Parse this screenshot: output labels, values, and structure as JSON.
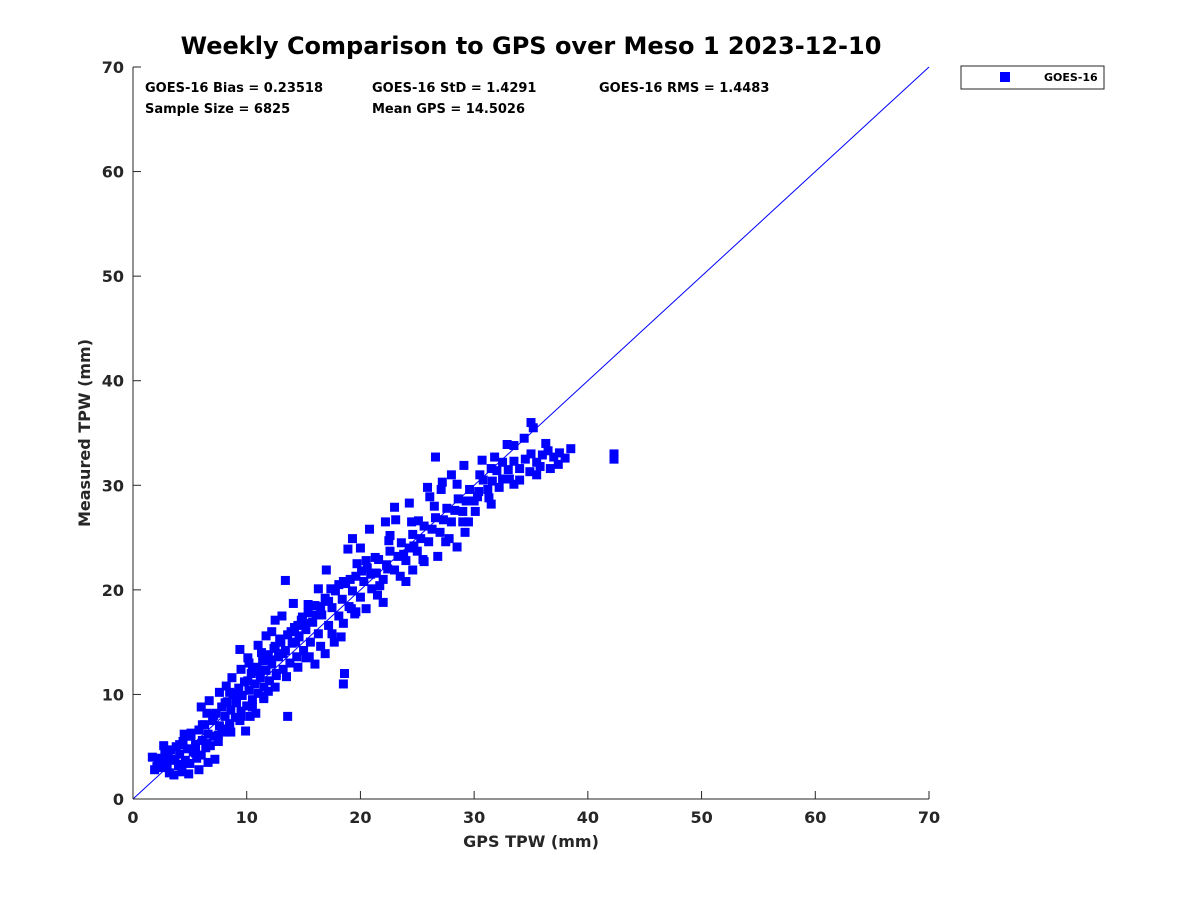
{
  "chart_data": {
    "type": "scatter",
    "title": "Weekly Comparison to GPS over Meso 1 2023-12-10",
    "xlabel": "GPS TPW (mm)",
    "ylabel": "Measured TPW (mm)",
    "xlim": [
      0,
      70
    ],
    "ylim": [
      0,
      70
    ],
    "xticks": [
      "0",
      "10",
      "20",
      "30",
      "40",
      "50",
      "60",
      "70"
    ],
    "yticks": [
      "0",
      "10",
      "20",
      "30",
      "40",
      "50",
      "60",
      "70"
    ],
    "grid": false,
    "legend_position": "outside-top-right",
    "marker": "square",
    "color": "#0000ff",
    "stats": {
      "bias": "GOES-16 Bias = 0.23518",
      "std": "GOES-16 StD = 1.4291",
      "rms": "GOES-16 RMS = 1.4483",
      "sample_size": "Sample Size = 6825",
      "mean_gps": "Mean GPS = 14.5026"
    },
    "reference_line": {
      "x": [
        0,
        70
      ],
      "y": [
        0,
        70
      ]
    },
    "series": [
      {
        "name": "GOES-16",
        "points": [
          [
            1.7,
            4.0
          ],
          [
            1.9,
            2.8
          ],
          [
            2.2,
            3.5
          ],
          [
            2.4,
            3.9
          ],
          [
            2.6,
            3.0
          ],
          [
            2.8,
            4.4
          ],
          [
            3.0,
            3.3
          ],
          [
            3.2,
            2.5
          ],
          [
            3.3,
            4.7
          ],
          [
            3.5,
            3.8
          ],
          [
            3.6,
            2.3
          ],
          [
            3.8,
            5.0
          ],
          [
            4.0,
            3.2
          ],
          [
            4.1,
            4.3
          ],
          [
            4.3,
            2.6
          ],
          [
            4.4,
            5.5
          ],
          [
            4.6,
            3.7
          ],
          [
            4.8,
            4.8
          ],
          [
            5.0,
            3.4
          ],
          [
            5.1,
            6.0
          ],
          [
            5.3,
            4.5
          ],
          [
            5.5,
            5.2
          ],
          [
            5.6,
            3.9
          ],
          [
            5.8,
            6.6
          ],
          [
            6.0,
            4.2
          ],
          [
            6.1,
            5.6
          ],
          [
            6.3,
            7.1
          ],
          [
            6.4,
            4.9
          ],
          [
            6.6,
            6.2
          ],
          [
            6.8,
            5.1
          ],
          [
            7.0,
            7.5
          ],
          [
            7.1,
            6.0
          ],
          [
            7.3,
            8.2
          ],
          [
            7.5,
            5.5
          ],
          [
            7.6,
            7.0
          ],
          [
            7.8,
            8.8
          ],
          [
            8.0,
            6.4
          ],
          [
            8.1,
            7.9
          ],
          [
            8.3,
            9.3
          ],
          [
            8.5,
            7.2
          ],
          [
            8.6,
            8.5
          ],
          [
            8.8,
            10.0
          ],
          [
            9.0,
            7.8
          ],
          [
            9.1,
            9.2
          ],
          [
            9.3,
            10.6
          ],
          [
            9.5,
            8.4
          ],
          [
            9.6,
            9.9
          ],
          [
            9.8,
            11.2
          ],
          [
            10.0,
            8.9
          ],
          [
            10.2,
            10.4
          ],
          [
            10.4,
            12.0
          ],
          [
            10.5,
            9.5
          ],
          [
            10.7,
            11.0
          ],
          [
            10.9,
            12.6
          ],
          [
            11.0,
            10.1
          ],
          [
            11.2,
            11.6
          ],
          [
            11.4,
            13.2
          ],
          [
            11.5,
            10.7
          ],
          [
            11.7,
            12.3
          ],
          [
            11.9,
            13.8
          ],
          [
            12.0,
            11.3
          ],
          [
            12.2,
            12.9
          ],
          [
            12.4,
            14.4
          ],
          [
            12.6,
            11.8
          ],
          [
            12.8,
            13.6
          ],
          [
            13.0,
            15.0
          ],
          [
            13.2,
            12.4
          ],
          [
            13.4,
            14.2
          ],
          [
            13.6,
            15.7
          ],
          [
            13.8,
            13.0
          ],
          [
            14.0,
            14.9
          ],
          [
            14.2,
            16.4
          ],
          [
            14.4,
            13.6
          ],
          [
            14.6,
            15.5
          ],
          [
            14.8,
            17.1
          ],
          [
            15.0,
            14.2
          ],
          [
            15.2,
            16.2
          ],
          [
            15.4,
            17.8
          ],
          [
            15.6,
            15.0
          ],
          [
            15.8,
            16.9
          ],
          [
            16.0,
            18.5
          ],
          [
            16.3,
            15.8
          ],
          [
            16.6,
            17.6
          ],
          [
            16.9,
            19.2
          ],
          [
            17.2,
            16.6
          ],
          [
            17.5,
            18.3
          ],
          [
            17.8,
            19.9
          ],
          [
            18.1,
            17.5
          ],
          [
            18.4,
            19.1
          ],
          [
            18.7,
            20.6
          ],
          [
            19.0,
            18.4
          ],
          [
            19.3,
            19.9
          ],
          [
            19.6,
            21.3
          ],
          [
            20.0,
            19.3
          ],
          [
            20.3,
            20.8
          ],
          [
            20.6,
            22.1
          ],
          [
            21.0,
            20.1
          ],
          [
            21.3,
            21.6
          ],
          [
            21.6,
            22.9
          ],
          [
            22.0,
            21.0
          ],
          [
            22.3,
            22.4
          ],
          [
            22.6,
            23.7
          ],
          [
            23.0,
            21.9
          ],
          [
            23.3,
            23.2
          ],
          [
            23.6,
            24.5
          ],
          [
            24.0,
            22.8
          ],
          [
            24.3,
            24.0
          ],
          [
            24.6,
            25.3
          ],
          [
            25.0,
            23.7
          ],
          [
            25.3,
            24.9
          ],
          [
            25.6,
            26.1
          ],
          [
            26.0,
            24.6
          ],
          [
            26.3,
            25.8
          ],
          [
            26.6,
            26.9
          ],
          [
            27.0,
            25.5
          ],
          [
            27.3,
            26.7
          ],
          [
            27.6,
            27.8
          ],
          [
            28.0,
            26.5
          ],
          [
            28.3,
            27.6
          ],
          [
            28.6,
            28.7
          ],
          [
            29.0,
            27.5
          ],
          [
            29.3,
            28.5
          ],
          [
            29.6,
            29.6
          ],
          [
            30.0,
            28.5
          ],
          [
            30.4,
            29.4
          ],
          [
            30.8,
            30.5
          ],
          [
            31.2,
            29.6
          ],
          [
            31.6,
            30.4
          ],
          [
            32.0,
            31.4
          ],
          [
            32.5,
            30.6
          ],
          [
            33.0,
            31.5
          ],
          [
            33.5,
            32.3
          ],
          [
            34.0,
            31.6
          ],
          [
            34.5,
            32.5
          ],
          [
            35.0,
            33.0
          ],
          [
            35.5,
            32.2
          ],
          [
            36.0,
            32.9
          ],
          [
            36.5,
            33.3
          ],
          [
            37.0,
            32.7
          ],
          [
            37.5,
            33.1
          ],
          [
            38.0,
            32.6
          ],
          [
            38.5,
            33.5
          ],
          [
            42.3,
            33.0
          ],
          [
            42.3,
            32.5
          ],
          [
            35.0,
            36.0
          ],
          [
            34.4,
            34.5
          ],
          [
            35.2,
            35.5
          ],
          [
            33.5,
            33.8
          ],
          [
            26.6,
            32.7
          ],
          [
            21.7,
            20.4
          ],
          [
            20.9,
            21.5
          ],
          [
            18.5,
            11.0
          ],
          [
            18.6,
            12.0
          ],
          [
            14.6,
            15.6
          ],
          [
            13.4,
            20.9
          ],
          [
            17.0,
            21.9
          ],
          [
            19.2,
            18.2
          ],
          [
            20.5,
            18.2
          ],
          [
            12.5,
            17.1
          ],
          [
            13.6,
            7.9
          ],
          [
            11.3,
            14.0
          ],
          [
            10.2,
            13.0
          ],
          [
            9.4,
            14.3
          ],
          [
            20.8,
            25.8
          ],
          [
            19.3,
            24.9
          ],
          [
            23.0,
            27.9
          ],
          [
            22.6,
            25.2
          ],
          [
            21.3,
            23.1
          ],
          [
            24.6,
            21.9
          ],
          [
            28.5,
            24.1
          ],
          [
            29.2,
            25.5
          ],
          [
            30.3,
            28.9
          ],
          [
            31.5,
            31.6
          ],
          [
            29.1,
            31.9
          ],
          [
            28.0,
            31.0
          ],
          [
            27.1,
            29.6
          ],
          [
            26.1,
            28.9
          ],
          [
            25.1,
            26.6
          ],
          [
            24.7,
            24.2
          ],
          [
            23.8,
            23.4
          ],
          [
            22.4,
            22.0
          ],
          [
            21.4,
            21.6
          ],
          [
            20.1,
            21.8
          ],
          [
            19.7,
            22.5
          ],
          [
            18.9,
            23.9
          ],
          [
            17.4,
            20.1
          ],
          [
            16.3,
            20.1
          ],
          [
            15.4,
            18.6
          ],
          [
            14.9,
            17.4
          ],
          [
            14.1,
            18.7
          ],
          [
            13.1,
            17.5
          ],
          [
            12.9,
            15.3
          ],
          [
            12.6,
            12.0
          ],
          [
            11.9,
            10.3
          ],
          [
            11.5,
            9.6
          ],
          [
            10.8,
            8.2
          ],
          [
            10.3,
            7.9
          ],
          [
            9.9,
            6.5
          ],
          [
            9.4,
            7.5
          ],
          [
            8.6,
            6.4
          ],
          [
            7.8,
            6.7
          ],
          [
            7.2,
            3.8
          ],
          [
            6.6,
            3.5
          ],
          [
            5.8,
            2.8
          ],
          [
            4.9,
            2.4
          ],
          [
            4.3,
            3.3
          ],
          [
            3.7,
            3.7
          ],
          [
            3.1,
            4.6
          ],
          [
            2.7,
            5.1
          ],
          [
            6.0,
            8.8
          ],
          [
            6.7,
            9.4
          ],
          [
            7.6,
            10.2
          ],
          [
            8.2,
            10.8
          ],
          [
            8.7,
            11.6
          ],
          [
            9.5,
            12.4
          ],
          [
            10.1,
            13.5
          ],
          [
            11.0,
            14.7
          ],
          [
            11.7,
            15.6
          ],
          [
            12.2,
            16.0
          ],
          [
            13.9,
            16.0
          ],
          [
            15.2,
            13.5
          ],
          [
            16.0,
            12.9
          ],
          [
            16.9,
            13.9
          ],
          [
            17.7,
            15.0
          ],
          [
            18.3,
            15.5
          ],
          [
            19.6,
            17.9
          ],
          [
            22.0,
            18.8
          ],
          [
            24.0,
            20.8
          ],
          [
            25.6,
            22.7
          ],
          [
            26.8,
            23.2
          ],
          [
            27.8,
            24.9
          ],
          [
            29.0,
            26.5
          ],
          [
            30.1,
            27.5
          ],
          [
            31.3,
            28.8
          ],
          [
            32.2,
            29.8
          ],
          [
            33.1,
            30.6
          ],
          [
            34.0,
            30.5
          ],
          [
            34.9,
            31.3
          ],
          [
            35.8,
            31.8
          ],
          [
            36.7,
            31.6
          ],
          [
            37.4,
            32.0
          ],
          [
            36.3,
            34.0
          ],
          [
            32.9,
            33.9
          ],
          [
            31.8,
            32.7
          ],
          [
            30.7,
            32.4
          ],
          [
            27.2,
            30.3
          ],
          [
            25.9,
            29.8
          ],
          [
            24.3,
            28.3
          ],
          [
            23.1,
            26.7
          ],
          [
            22.2,
            26.5
          ],
          [
            20.0,
            24.0
          ],
          [
            19.1,
            21.0
          ],
          [
            18.1,
            20.5
          ],
          [
            17.2,
            18.9
          ],
          [
            16.1,
            17.6
          ],
          [
            15.1,
            16.8
          ],
          [
            14.3,
            15.0
          ],
          [
            13.2,
            13.9
          ],
          [
            12.1,
            13.3
          ],
          [
            11.1,
            12.3
          ],
          [
            10.1,
            11.3
          ],
          [
            9.1,
            10.1
          ],
          [
            8.1,
            9.2
          ],
          [
            7.1,
            8.0
          ],
          [
            6.1,
            7.1
          ],
          [
            5.1,
            6.3
          ],
          [
            4.1,
            5.2
          ],
          [
            3.1,
            4.1
          ],
          [
            2.1,
            3.1
          ],
          [
            5.5,
            4.4
          ],
          [
            6.5,
            5.3
          ],
          [
            7.5,
            6.1
          ],
          [
            8.5,
            7.0
          ],
          [
            9.5,
            7.9
          ],
          [
            10.5,
            8.8
          ],
          [
            11.5,
            9.8
          ],
          [
            12.5,
            10.7
          ],
          [
            13.5,
            11.7
          ],
          [
            14.5,
            12.6
          ],
          [
            15.5,
            13.6
          ],
          [
            16.5,
            14.6
          ],
          [
            17.5,
            15.8
          ],
          [
            18.5,
            16.8
          ],
          [
            19.5,
            17.7
          ],
          [
            21.5,
            19.5
          ],
          [
            23.5,
            21.3
          ],
          [
            25.5,
            22.9
          ],
          [
            27.5,
            24.6
          ],
          [
            29.5,
            26.5
          ],
          [
            31.5,
            28.2
          ],
          [
            33.5,
            30.1
          ],
          [
            35.5,
            31.0
          ],
          [
            32.5,
            32.2
          ],
          [
            30.5,
            31.0
          ],
          [
            28.5,
            30.1
          ],
          [
            26.5,
            28.0
          ],
          [
            24.5,
            26.5
          ],
          [
            22.5,
            24.7
          ],
          [
            20.5,
            22.8
          ],
          [
            18.5,
            20.8
          ],
          [
            16.5,
            18.4
          ],
          [
            14.5,
            16.6
          ],
          [
            12.5,
            14.6
          ],
          [
            10.5,
            12.2
          ],
          [
            8.5,
            10.2
          ],
          [
            6.5,
            8.2
          ],
          [
            4.5,
            6.2
          ]
        ]
      }
    ]
  }
}
